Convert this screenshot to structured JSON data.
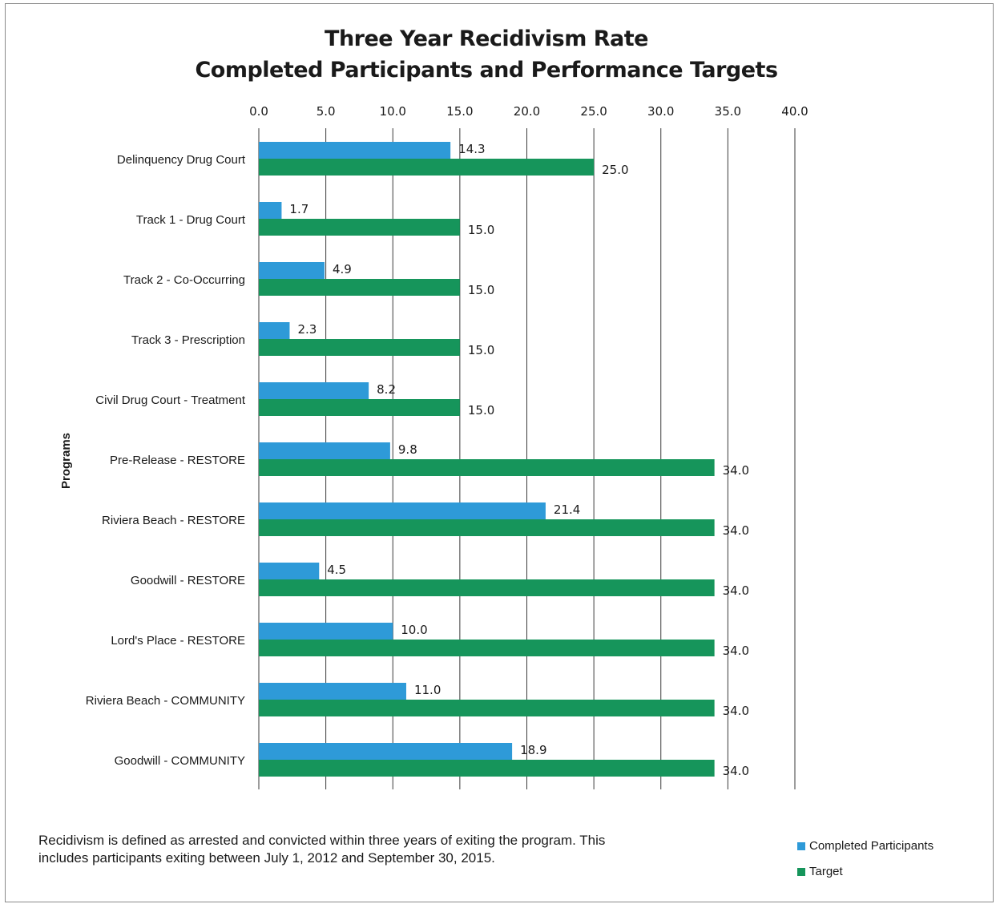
{
  "chart_data": {
    "type": "bar",
    "orientation": "horizontal",
    "title": "Three Year Recidivism Rate",
    "subtitle": "Completed Participants and Performance Targets",
    "ylabel": "Programs",
    "xlabel": "",
    "xlim": [
      0,
      40
    ],
    "x_ticks": [
      "0.0",
      "5.0",
      "10.0",
      "15.0",
      "20.0",
      "25.0",
      "30.0",
      "35.0",
      "40.0"
    ],
    "x_axis_position": "top",
    "grid": true,
    "legend_position": "bottom-right",
    "categories": [
      "Delinquency Drug Court",
      "Track 1 - Drug Court",
      "Track 2 - Co-Occurring",
      "Track 3 - Prescription",
      "Civil Drug Court - Treatment",
      "Pre-Release - RESTORE",
      "Riviera Beach - RESTORE",
      "Goodwill - RESTORE",
      "Lord's Place - RESTORE",
      "Riviera Beach - COMMUNITY",
      "Goodwill - COMMUNITY"
    ],
    "series": [
      {
        "name": "Completed Participants",
        "color": "#2e9ad8",
        "values": [
          14.3,
          1.7,
          4.9,
          2.3,
          8.2,
          9.8,
          21.4,
          4.5,
          10.0,
          11.0,
          18.9
        ],
        "labels": [
          "14.3",
          "1.7",
          "4.9",
          "2.3",
          "8.2",
          "9.8",
          "21.4",
          "4.5",
          "10.0",
          "11.0",
          "18.9"
        ]
      },
      {
        "name": "Target",
        "color": "#16955b",
        "values": [
          25.0,
          15.0,
          15.0,
          15.0,
          15.0,
          34.0,
          34.0,
          34.0,
          34.0,
          34.0,
          34.0
        ],
        "labels": [
          "25.0",
          "15.0",
          "15.0",
          "15.0",
          "15.0",
          "34.0",
          "34.0",
          "34.0",
          "34.0",
          "34.0",
          "34.0"
        ]
      }
    ],
    "footnote": "Recidivism is defined as arrested and convicted within three years of exiting the program.  This includes participants exiting between July 1, 2012 and September 30, 2015."
  }
}
